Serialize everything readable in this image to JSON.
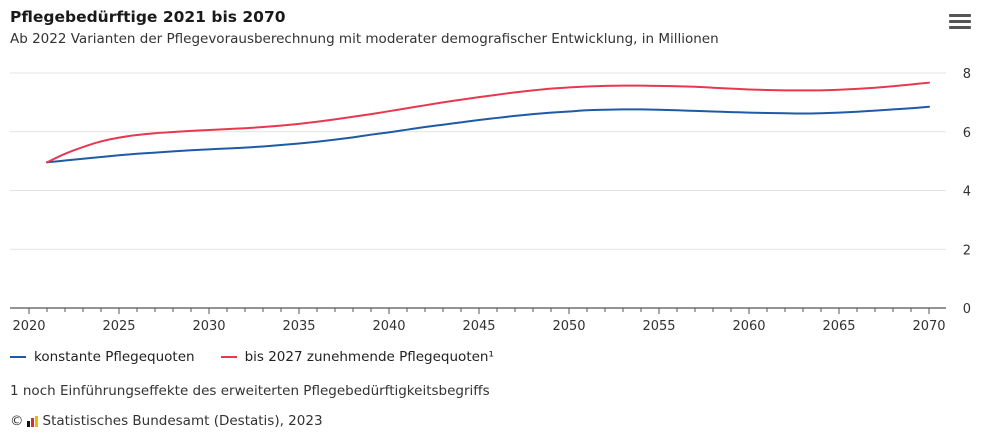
{
  "header": {
    "title": "Pflegebedürftige 2021 bis 2070",
    "subtitle": "Ab 2022 Varianten der Pflegevorausberechnung mit moderater demografischer Entwicklung, in Millionen",
    "menu_icon": "hamburger-menu-icon"
  },
  "chart_data": {
    "type": "line",
    "title": "Pflegebedürftige 2021 bis 2070",
    "subtitle": "Ab 2022 Varianten der Pflegevorausberechnung mit moderater demografischer Entwicklung, in Millionen",
    "xlabel": "",
    "ylabel": "",
    "xlim": [
      2020,
      2070
    ],
    "ylim": [
      0,
      8
    ],
    "x_ticks": [
      2020,
      2025,
      2030,
      2035,
      2040,
      2045,
      2050,
      2055,
      2060,
      2065,
      2070
    ],
    "y_ticks": [
      0,
      2,
      4,
      6,
      8
    ],
    "grid": true,
    "legend_position": "bottom-left",
    "x": [
      2021,
      2022,
      2023,
      2024,
      2025,
      2026,
      2027,
      2028,
      2029,
      2030,
      2031,
      2032,
      2033,
      2034,
      2035,
      2036,
      2037,
      2038,
      2039,
      2040,
      2041,
      2042,
      2043,
      2044,
      2045,
      2046,
      2047,
      2048,
      2049,
      2050,
      2051,
      2052,
      2053,
      2054,
      2055,
      2056,
      2057,
      2058,
      2059,
      2060,
      2061,
      2062,
      2063,
      2064,
      2065,
      2066,
      2067,
      2068,
      2069,
      2070
    ],
    "series": [
      {
        "name": "konstante Pflegequoten",
        "color": "#1f5aa6",
        "values": [
          4.96,
          5.02,
          5.08,
          5.14,
          5.2,
          5.25,
          5.29,
          5.33,
          5.37,
          5.4,
          5.43,
          5.46,
          5.5,
          5.55,
          5.6,
          5.66,
          5.73,
          5.81,
          5.9,
          5.98,
          6.07,
          6.16,
          6.24,
          6.32,
          6.4,
          6.47,
          6.54,
          6.6,
          6.65,
          6.69,
          6.73,
          6.75,
          6.76,
          6.76,
          6.75,
          6.73,
          6.71,
          6.69,
          6.67,
          6.65,
          6.64,
          6.63,
          6.62,
          6.63,
          6.65,
          6.68,
          6.72,
          6.76,
          6.8,
          6.85
        ]
      },
      {
        "name": "bis 2027 zunehmende Pflegequoten¹",
        "color": "#e8384f",
        "values": [
          4.96,
          5.25,
          5.48,
          5.67,
          5.8,
          5.89,
          5.95,
          5.99,
          6.03,
          6.06,
          6.09,
          6.12,
          6.16,
          6.21,
          6.27,
          6.34,
          6.42,
          6.51,
          6.6,
          6.7,
          6.8,
          6.9,
          7.0,
          7.09,
          7.18,
          7.26,
          7.34,
          7.41,
          7.47,
          7.51,
          7.54,
          7.56,
          7.57,
          7.57,
          7.56,
          7.55,
          7.53,
          7.5,
          7.47,
          7.44,
          7.42,
          7.41,
          7.41,
          7.41,
          7.43,
          7.46,
          7.5,
          7.55,
          7.61,
          7.67
        ]
      }
    ]
  },
  "footnote": "1 noch Einführungseffekte des erweiterten Pflegebedürftigkeitsbegriffs",
  "source": {
    "copyright": "©",
    "logo_icon": "destatis-logo-icon",
    "text": "Statistisches Bundesamt (Destatis), 2023"
  }
}
